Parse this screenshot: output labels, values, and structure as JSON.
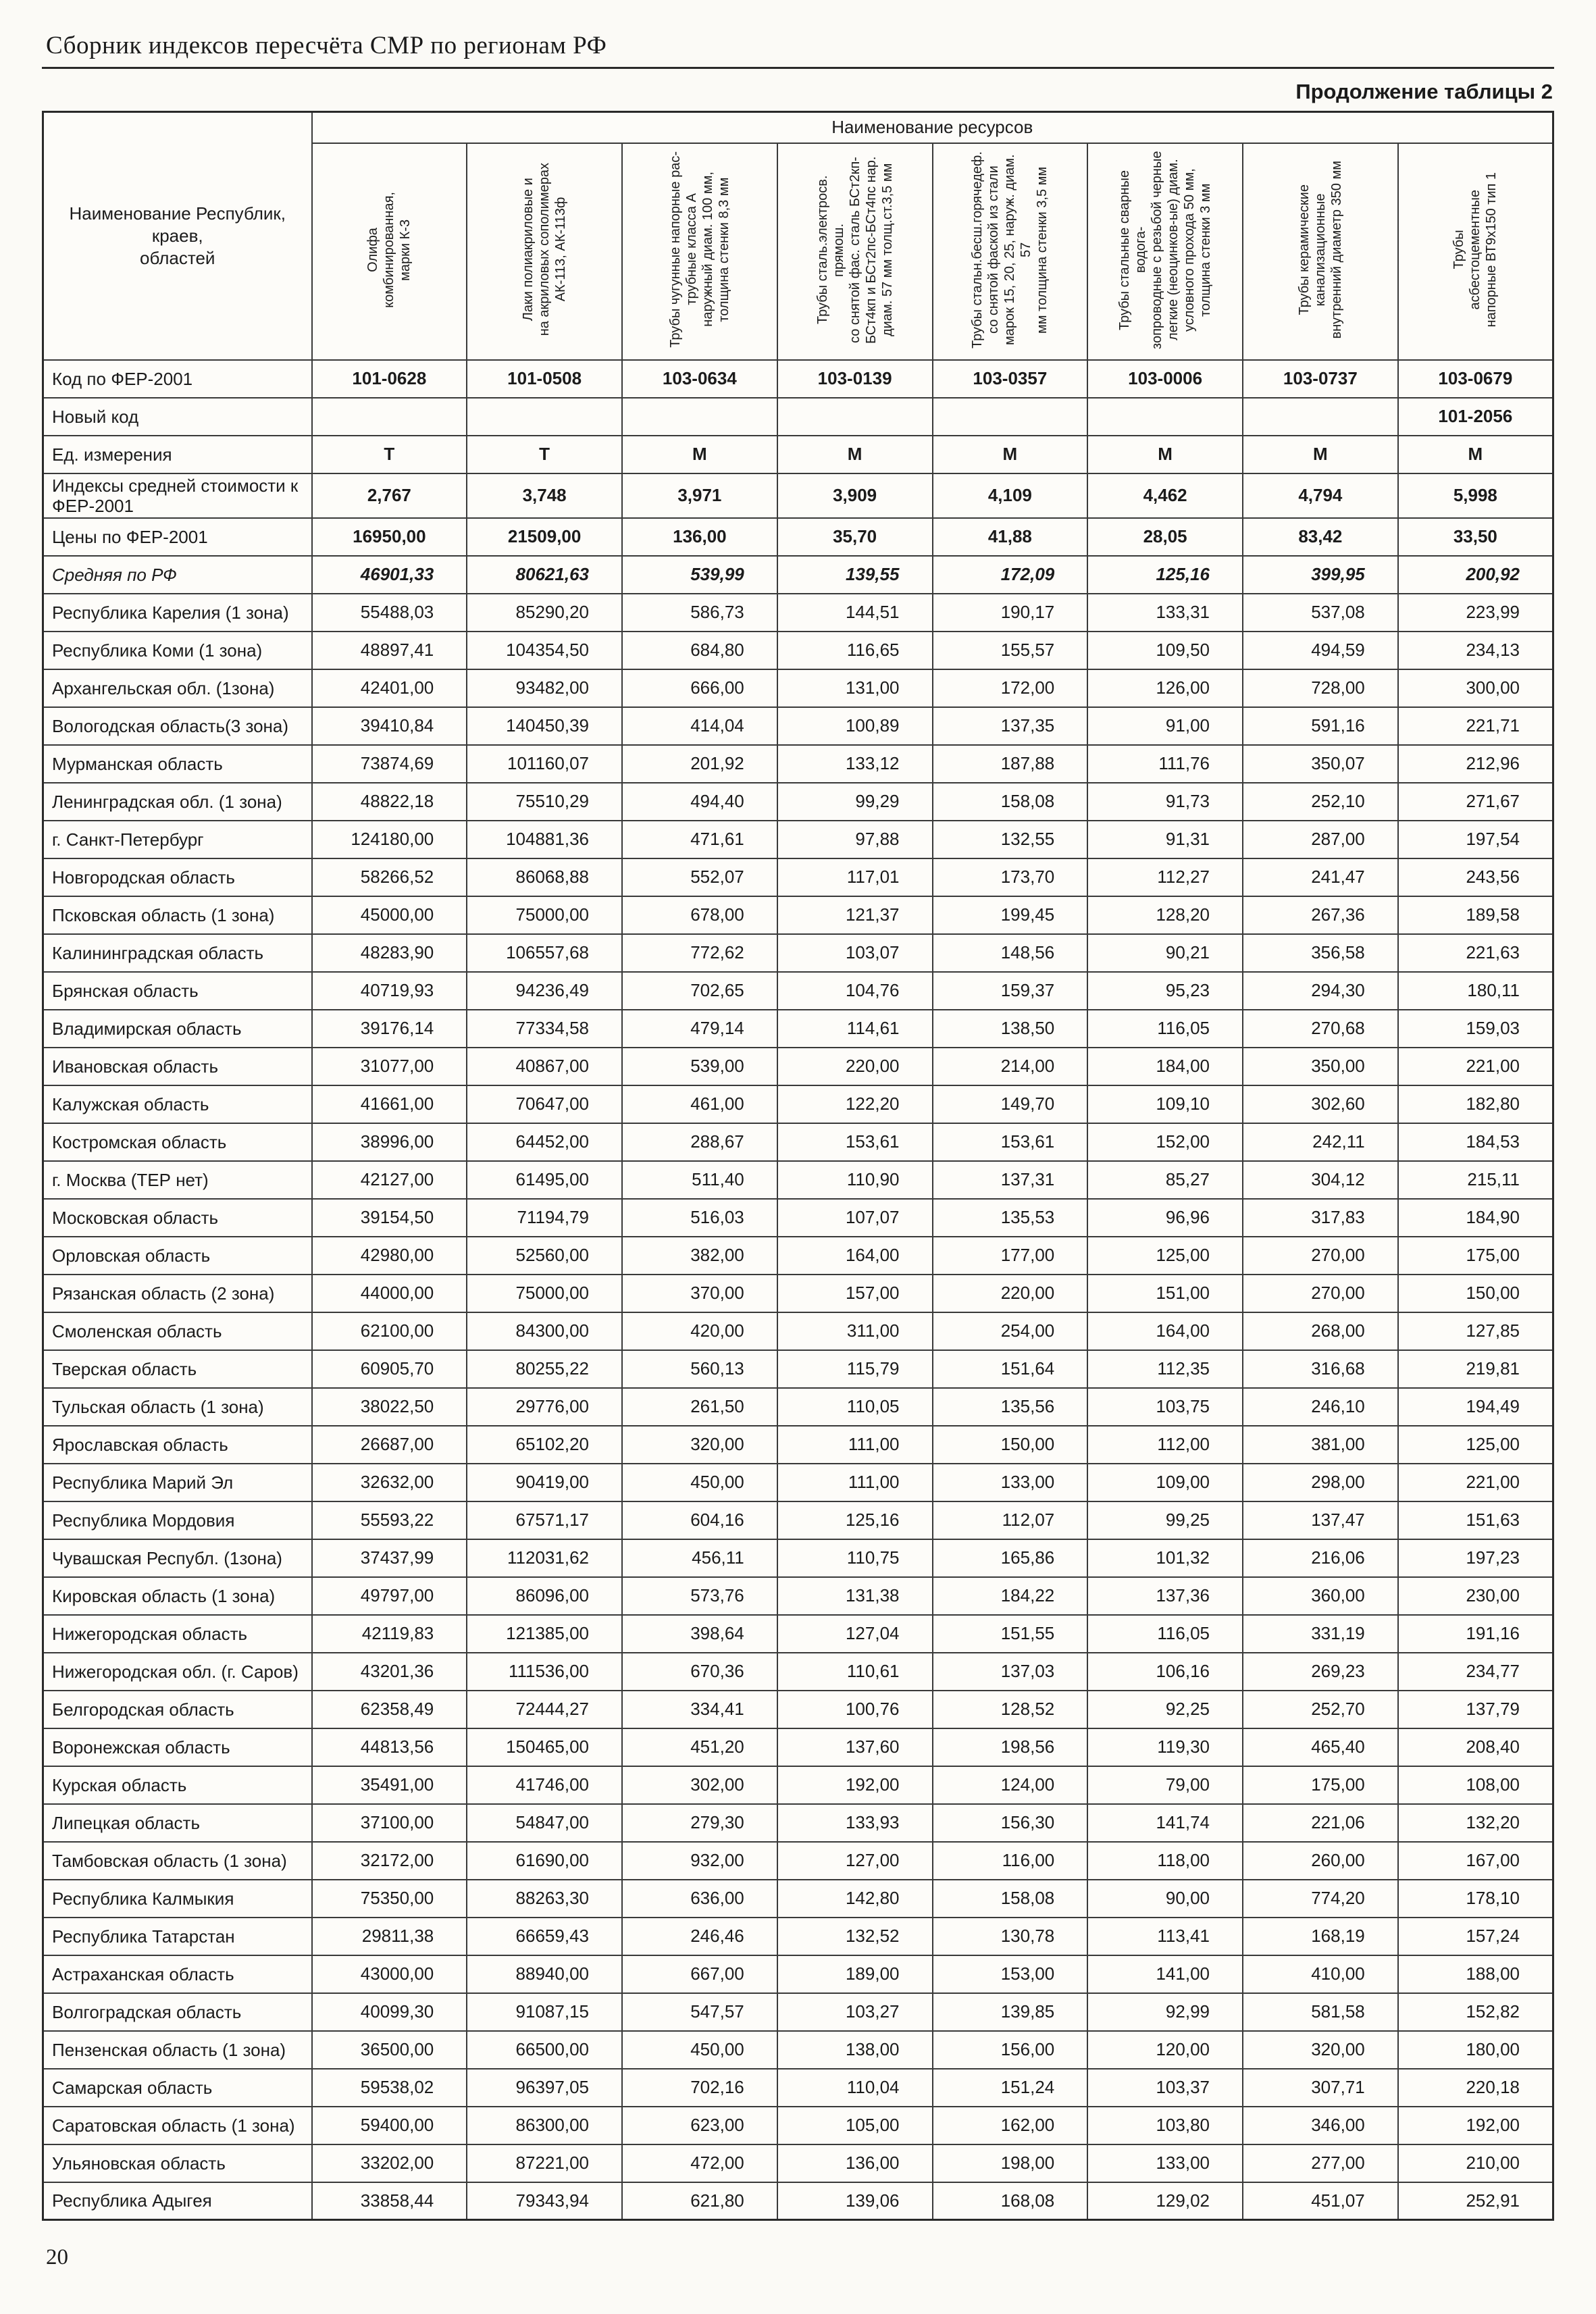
{
  "page": {
    "header_title": "Сборник индексов пересчёта СМР  по регионам РФ",
    "table_caption": "Продолжение таблицы 2",
    "page_number": "20"
  },
  "table": {
    "resources_header": "Наименование ресурсов",
    "name_header": "Наименование Республик, краев,\nобластей",
    "columns": [
      "Олифа\nкомбинированная,\nмарки К-3",
      "Лаки полиакриловые и\nна акриловых сополимерах\nАК-113, АК-113ф",
      "Трубы чугунные напорные рас-\nтрубные класса А\nнаружный диам. 100 мм,\nтолщина стенки 8,3 мм",
      "Трубы сталь.электросв. прямош.\nсо снятой фас. сталь БСт2кп-\nБСт4кп и БСт2пс-БСт4пс нар.\nдиам. 57 мм толщ.ст.3,5 мм",
      "Трубы стальн.бесш.горячедеф.\nсо снятой фаской  из стали\nмарок 15, 20, 25, наруж. диам. 57\nмм толщина стенки 3,5 мм",
      "Трубы стальные сварные водога-\nзопроводные с резьбой черные\nлегкие (неоцинков-ые) диам.\nусловного прохода 50 мм,\nтолщина стенки 3 мм",
      "Трубы керамические\nканализационные\nвнутренний диаметр  350 мм",
      "Трубы\nасбестоцементные\nнапорные ВТ9х150 тип 1"
    ],
    "meta_rows": [
      {
        "label": "Код по ФЕР-2001",
        "values": [
          "101-0628",
          "101-0508",
          "103-0634",
          "103-0139",
          "103-0357",
          "103-0006",
          "103-0737",
          "103-0679"
        ]
      },
      {
        "label": "Новый код",
        "values": [
          "",
          "",
          "",
          "",
          "",
          "",
          "",
          "101-2056"
        ]
      },
      {
        "label": "Ед. измерения",
        "values": [
          "Т",
          "Т",
          "М",
          "М",
          "М",
          "М",
          "М",
          "М"
        ]
      },
      {
        "label": "Индексы средней стоимости к ФЕР-2001",
        "values": [
          "2,767",
          "3,748",
          "3,971",
          "3,909",
          "4,109",
          "4,462",
          "4,794",
          "5,998"
        ]
      },
      {
        "label": "Цены по ФЕР-2001",
        "values": [
          "16950,00",
          "21509,00",
          "136,00",
          "35,70",
          "41,88",
          "28,05",
          "83,42",
          "33,50"
        ]
      },
      {
        "label": "Средняя по РФ",
        "values": [
          "46901,33",
          "80621,63",
          "539,99",
          "139,55",
          "172,09",
          "125,16",
          "399,95",
          "200,92"
        ]
      }
    ],
    "rows": [
      {
        "name": "Республика Карелия (1 зона)",
        "values": [
          "55488,03",
          "85290,20",
          "586,73",
          "144,51",
          "190,17",
          "133,31",
          "537,08",
          "223,99"
        ]
      },
      {
        "name": "Республика Коми (1 зона)",
        "values": [
          "48897,41",
          "104354,50",
          "684,80",
          "116,65",
          "155,57",
          "109,50",
          "494,59",
          "234,13"
        ]
      },
      {
        "name": "Архангельская обл. (1зона)",
        "values": [
          "42401,00",
          "93482,00",
          "666,00",
          "131,00",
          "172,00",
          "126,00",
          "728,00",
          "300,00"
        ]
      },
      {
        "name": "Вологодская область(3 зона)",
        "values": [
          "39410,84",
          "140450,39",
          "414,04",
          "100,89",
          "137,35",
          "91,00",
          "591,16",
          "221,71"
        ]
      },
      {
        "name": "Мурманская область",
        "values": [
          "73874,69",
          "101160,07",
          "201,92",
          "133,12",
          "187,88",
          "111,76",
          "350,07",
          "212,96"
        ]
      },
      {
        "name": "Ленинградская обл. (1 зона)",
        "values": [
          "48822,18",
          "75510,29",
          "494,40",
          "99,29",
          "158,08",
          "91,73",
          "252,10",
          "271,67"
        ]
      },
      {
        "name": "г. Санкт-Петербург",
        "values": [
          "124180,00",
          "104881,36",
          "471,61",
          "97,88",
          "132,55",
          "91,31",
          "287,00",
          "197,54"
        ]
      },
      {
        "name": "Новгородская область",
        "values": [
          "58266,52",
          "86068,88",
          "552,07",
          "117,01",
          "173,70",
          "112,27",
          "241,47",
          "243,56"
        ]
      },
      {
        "name": "Псковская область (1 зона)",
        "values": [
          "45000,00",
          "75000,00",
          "678,00",
          "121,37",
          "199,45",
          "128,20",
          "267,36",
          "189,58"
        ]
      },
      {
        "name": "Калининградская область",
        "values": [
          "48283,90",
          "106557,68",
          "772,62",
          "103,07",
          "148,56",
          "90,21",
          "356,58",
          "221,63"
        ]
      },
      {
        "name": "Брянская область",
        "values": [
          "40719,93",
          "94236,49",
          "702,65",
          "104,76",
          "159,37",
          "95,23",
          "294,30",
          "180,11"
        ]
      },
      {
        "name": "Владимирская область",
        "values": [
          "39176,14",
          "77334,58",
          "479,14",
          "114,61",
          "138,50",
          "116,05",
          "270,68",
          "159,03"
        ]
      },
      {
        "name": "Ивановская область",
        "values": [
          "31077,00",
          "40867,00",
          "539,00",
          "220,00",
          "214,00",
          "184,00",
          "350,00",
          "221,00"
        ]
      },
      {
        "name": "Калужская область",
        "values": [
          "41661,00",
          "70647,00",
          "461,00",
          "122,20",
          "149,70",
          "109,10",
          "302,60",
          "182,80"
        ]
      },
      {
        "name": "Костромская область",
        "values": [
          "38996,00",
          "64452,00",
          "288,67",
          "153,61",
          "153,61",
          "152,00",
          "242,11",
          "184,53"
        ]
      },
      {
        "name": "г. Москва (ТЕР нет)",
        "values": [
          "42127,00",
          "61495,00",
          "511,40",
          "110,90",
          "137,31",
          "85,27",
          "304,12",
          "215,11"
        ]
      },
      {
        "name": "Московская  область",
        "values": [
          "39154,50",
          "71194,79",
          "516,03",
          "107,07",
          "135,53",
          "96,96",
          "317,83",
          "184,90"
        ]
      },
      {
        "name": "Орловская область",
        "values": [
          "42980,00",
          "52560,00",
          "382,00",
          "164,00",
          "177,00",
          "125,00",
          "270,00",
          "175,00"
        ]
      },
      {
        "name": "Рязанская область (2 зона)",
        "values": [
          "44000,00",
          "75000,00",
          "370,00",
          "157,00",
          "220,00",
          "151,00",
          "270,00",
          "150,00"
        ]
      },
      {
        "name": "Смоленская область",
        "values": [
          "62100,00",
          "84300,00",
          "420,00",
          "311,00",
          "254,00",
          "164,00",
          "268,00",
          "127,85"
        ]
      },
      {
        "name": "Тверская область",
        "values": [
          "60905,70",
          "80255,22",
          "560,13",
          "115,79",
          "151,64",
          "112,35",
          "316,68",
          "219,81"
        ]
      },
      {
        "name": "Тульская область (1 зона)",
        "values": [
          "38022,50",
          "29776,00",
          "261,50",
          "110,05",
          "135,56",
          "103,75",
          "246,10",
          "194,49"
        ]
      },
      {
        "name": "Ярославская область",
        "values": [
          "26687,00",
          "65102,20",
          "320,00",
          "111,00",
          "150,00",
          "112,00",
          "381,00",
          "125,00"
        ]
      },
      {
        "name": "Республика Марий Эл",
        "values": [
          "32632,00",
          "90419,00",
          "450,00",
          "111,00",
          "133,00",
          "109,00",
          "298,00",
          "221,00"
        ]
      },
      {
        "name": "Республика Мордовия",
        "values": [
          "55593,22",
          "67571,17",
          "604,16",
          "125,16",
          "112,07",
          "99,25",
          "137,47",
          "151,63"
        ]
      },
      {
        "name": "Чувашская Республ. (1зона)",
        "values": [
          "37437,99",
          "112031,62",
          "456,11",
          "110,75",
          "165,86",
          "101,32",
          "216,06",
          "197,23"
        ]
      },
      {
        "name": "Кировская область (1 зона)",
        "values": [
          "49797,00",
          "86096,00",
          "573,76",
          "131,38",
          "184,22",
          "137,36",
          "360,00",
          "230,00"
        ]
      },
      {
        "name": "Нижегородская область",
        "values": [
          "42119,83",
          "121385,00",
          "398,64",
          "127,04",
          "151,55",
          "116,05",
          "331,19",
          "191,16"
        ]
      },
      {
        "name": "Нижегородская обл. (г. Саров)",
        "values": [
          "43201,36",
          "111536,00",
          "670,36",
          "110,61",
          "137,03",
          "106,16",
          "269,23",
          "234,77"
        ]
      },
      {
        "name": "Белгородская область",
        "values": [
          "62358,49",
          "72444,27",
          "334,41",
          "100,76",
          "128,52",
          "92,25",
          "252,70",
          "137,79"
        ]
      },
      {
        "name": "Воронежская область",
        "values": [
          "44813,56",
          "150465,00",
          "451,20",
          "137,60",
          "198,56",
          "119,30",
          "465,40",
          "208,40"
        ]
      },
      {
        "name": "Курская область",
        "values": [
          "35491,00",
          "41746,00",
          "302,00",
          "192,00",
          "124,00",
          "79,00",
          "175,00",
          "108,00"
        ]
      },
      {
        "name": "Липецкая область",
        "values": [
          "37100,00",
          "54847,00",
          "279,30",
          "133,93",
          "156,30",
          "141,74",
          "221,06",
          "132,20"
        ]
      },
      {
        "name": "Тамбовская область (1 зона)",
        "values": [
          "32172,00",
          "61690,00",
          "932,00",
          "127,00",
          "116,00",
          "118,00",
          "260,00",
          "167,00"
        ]
      },
      {
        "name": "Республика Калмыкия",
        "values": [
          "75350,00",
          "88263,30",
          "636,00",
          "142,80",
          "158,08",
          "90,00",
          "774,20",
          "178,10"
        ]
      },
      {
        "name": "Республика Татарстан",
        "values": [
          "29811,38",
          "66659,43",
          "246,46",
          "132,52",
          "130,78",
          "113,41",
          "168,19",
          "157,24"
        ]
      },
      {
        "name": "Астраханская область",
        "values": [
          "43000,00",
          "88940,00",
          "667,00",
          "189,00",
          "153,00",
          "141,00",
          "410,00",
          "188,00"
        ]
      },
      {
        "name": "Волгоградская область",
        "values": [
          "40099,30",
          "91087,15",
          "547,57",
          "103,27",
          "139,85",
          "92,99",
          "581,58",
          "152,82"
        ]
      },
      {
        "name": "Пензенская область (1 зона)",
        "values": [
          "36500,00",
          "66500,00",
          "450,00",
          "138,00",
          "156,00",
          "120,00",
          "320,00",
          "180,00"
        ]
      },
      {
        "name": "Самарская область",
        "values": [
          "59538,02",
          "96397,05",
          "702,16",
          "110,04",
          "151,24",
          "103,37",
          "307,71",
          "220,18"
        ]
      },
      {
        "name": "Саратовская область (1 зона)",
        "values": [
          "59400,00",
          "86300,00",
          "623,00",
          "105,00",
          "162,00",
          "103,80",
          "346,00",
          "192,00"
        ]
      },
      {
        "name": "Ульяновская область",
        "values": [
          "33202,00",
          "87221,00",
          "472,00",
          "136,00",
          "198,00",
          "133,00",
          "277,00",
          "210,00"
        ]
      },
      {
        "name": "Республика Адыгея",
        "values": [
          "33858,44",
          "79343,94",
          "621,80",
          "139,06",
          "168,08",
          "129,02",
          "451,07",
          "252,91"
        ]
      }
    ]
  }
}
